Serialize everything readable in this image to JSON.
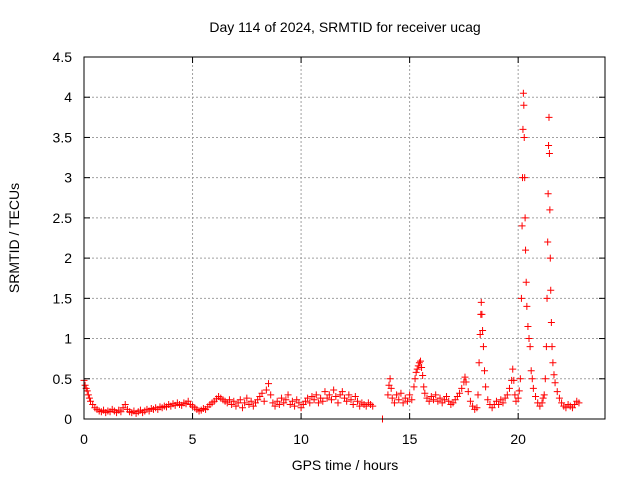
{
  "chart_data": {
    "type": "scatter",
    "title": "Day 114 of 2024, SRMTID for receiver ucag",
    "xlabel": "GPS time / hours",
    "ylabel": "SRMTID / TECUs",
    "xlim": [
      0,
      24
    ],
    "ylim": [
      0,
      4.5
    ],
    "xticks": [
      0,
      5,
      10,
      15,
      20
    ],
    "xtick_labels": [
      "0",
      "5",
      "10",
      "15",
      "20"
    ],
    "yticks": [
      0,
      0.5,
      1,
      1.5,
      2,
      2.5,
      3,
      3.5,
      4,
      4.5
    ],
    "ytick_labels": [
      "0",
      "0.5",
      "1",
      "1.5",
      "2",
      "2.5",
      "3",
      "3.5",
      "4",
      "4.5"
    ],
    "grid": true,
    "marker": "+",
    "color": "#ff0000",
    "series": [
      {
        "name": "ucag",
        "points": [
          [
            0.0,
            0.48
          ],
          [
            0.05,
            0.42
          ],
          [
            0.1,
            0.38
          ],
          [
            0.15,
            0.35
          ],
          [
            0.2,
            0.3
          ],
          [
            0.25,
            0.26
          ],
          [
            0.3,
            0.22
          ],
          [
            0.4,
            0.18
          ],
          [
            0.5,
            0.14
          ],
          [
            0.6,
            0.12
          ],
          [
            0.7,
            0.1
          ],
          [
            0.8,
            0.09
          ],
          [
            0.9,
            0.11
          ],
          [
            1.0,
            0.08
          ],
          [
            1.1,
            0.1
          ],
          [
            1.2,
            0.09
          ],
          [
            1.3,
            0.12
          ],
          [
            1.4,
            0.1
          ],
          [
            1.5,
            0.08
          ],
          [
            1.6,
            0.11
          ],
          [
            1.7,
            0.09
          ],
          [
            1.8,
            0.14
          ],
          [
            1.9,
            0.18
          ],
          [
            2.0,
            0.12
          ],
          [
            2.1,
            0.09
          ],
          [
            2.2,
            0.08
          ],
          [
            2.3,
            0.1
          ],
          [
            2.4,
            0.07
          ],
          [
            2.5,
            0.09
          ],
          [
            2.6,
            0.11
          ],
          [
            2.7,
            0.08
          ],
          [
            2.8,
            0.1
          ],
          [
            2.9,
            0.12
          ],
          [
            3.0,
            0.1
          ],
          [
            3.1,
            0.13
          ],
          [
            3.2,
            0.12
          ],
          [
            3.3,
            0.14
          ],
          [
            3.4,
            0.12
          ],
          [
            3.5,
            0.15
          ],
          [
            3.6,
            0.14
          ],
          [
            3.7,
            0.16
          ],
          [
            3.8,
            0.15
          ],
          [
            3.9,
            0.18
          ],
          [
            4.0,
            0.16
          ],
          [
            4.1,
            0.19
          ],
          [
            4.2,
            0.17
          ],
          [
            4.3,
            0.2
          ],
          [
            4.4,
            0.18
          ],
          [
            4.5,
            0.17
          ],
          [
            4.6,
            0.2
          ],
          [
            4.7,
            0.19
          ],
          [
            4.8,
            0.22
          ],
          [
            4.9,
            0.18
          ],
          [
            5.0,
            0.16
          ],
          [
            5.1,
            0.14
          ],
          [
            5.2,
            0.12
          ],
          [
            5.3,
            0.1
          ],
          [
            5.4,
            0.11
          ],
          [
            5.5,
            0.13
          ],
          [
            5.6,
            0.12
          ],
          [
            5.7,
            0.15
          ],
          [
            5.8,
            0.18
          ],
          [
            5.9,
            0.2
          ],
          [
            6.0,
            0.22
          ],
          [
            6.1,
            0.25
          ],
          [
            6.2,
            0.28
          ],
          [
            6.3,
            0.26
          ],
          [
            6.4,
            0.24
          ],
          [
            6.5,
            0.22
          ],
          [
            6.6,
            0.2
          ],
          [
            6.7,
            0.24
          ],
          [
            6.8,
            0.18
          ],
          [
            6.9,
            0.22
          ],
          [
            7.0,
            0.16
          ],
          [
            7.1,
            0.2
          ],
          [
            7.2,
            0.24
          ],
          [
            7.3,
            0.14
          ],
          [
            7.4,
            0.2
          ],
          [
            7.5,
            0.26
          ],
          [
            7.6,
            0.18
          ],
          [
            7.7,
            0.22
          ],
          [
            7.8,
            0.16
          ],
          [
            7.9,
            0.2
          ],
          [
            8.0,
            0.24
          ],
          [
            8.1,
            0.28
          ],
          [
            8.2,
            0.32
          ],
          [
            8.3,
            0.22
          ],
          [
            8.4,
            0.36
          ],
          [
            8.5,
            0.44
          ],
          [
            8.6,
            0.3
          ],
          [
            8.7,
            0.2
          ],
          [
            8.8,
            0.16
          ],
          [
            8.9,
            0.22
          ],
          [
            9.0,
            0.18
          ],
          [
            9.1,
            0.26
          ],
          [
            9.2,
            0.2
          ],
          [
            9.3,
            0.24
          ],
          [
            9.4,
            0.3
          ],
          [
            9.5,
            0.18
          ],
          [
            9.6,
            0.22
          ],
          [
            9.7,
            0.16
          ],
          [
            9.8,
            0.24
          ],
          [
            9.9,
            0.2
          ],
          [
            10.0,
            0.14
          ],
          [
            10.1,
            0.18
          ],
          [
            10.2,
            0.22
          ],
          [
            10.3,
            0.26
          ],
          [
            10.4,
            0.2
          ],
          [
            10.5,
            0.28
          ],
          [
            10.6,
            0.24
          ],
          [
            10.7,
            0.3
          ],
          [
            10.8,
            0.2
          ],
          [
            10.9,
            0.26
          ],
          [
            11.0,
            0.22
          ],
          [
            11.1,
            0.34
          ],
          [
            11.2,
            0.26
          ],
          [
            11.3,
            0.3
          ],
          [
            11.4,
            0.24
          ],
          [
            11.5,
            0.36
          ],
          [
            11.6,
            0.28
          ],
          [
            11.7,
            0.2
          ],
          [
            11.8,
            0.3
          ],
          [
            11.9,
            0.34
          ],
          [
            12.0,
            0.26
          ],
          [
            12.1,
            0.22
          ],
          [
            12.2,
            0.3
          ],
          [
            12.3,
            0.24
          ],
          [
            12.4,
            0.18
          ],
          [
            12.5,
            0.28
          ],
          [
            12.6,
            0.22
          ],
          [
            12.7,
            0.16
          ],
          [
            12.8,
            0.2
          ],
          [
            12.9,
            0.18
          ],
          [
            13.0,
            0.16
          ],
          [
            13.1,
            0.2
          ],
          [
            13.2,
            0.18
          ],
          [
            13.3,
            0.16
          ],
          [
            13.75,
            0.0
          ],
          [
            14.0,
            0.3
          ],
          [
            14.05,
            0.42
          ],
          [
            14.1,
            0.5
          ],
          [
            14.15,
            0.38
          ],
          [
            14.2,
            0.26
          ],
          [
            14.3,
            0.2
          ],
          [
            14.4,
            0.3
          ],
          [
            14.5,
            0.24
          ],
          [
            14.6,
            0.32
          ],
          [
            14.7,
            0.2
          ],
          [
            14.8,
            0.26
          ],
          [
            14.9,
            0.22
          ],
          [
            15.0,
            0.3
          ],
          [
            15.1,
            0.24
          ],
          [
            15.2,
            0.4
          ],
          [
            15.25,
            0.5
          ],
          [
            15.3,
            0.58
          ],
          [
            15.35,
            0.62
          ],
          [
            15.4,
            0.66
          ],
          [
            15.45,
            0.7
          ],
          [
            15.5,
            0.72
          ],
          [
            15.55,
            0.64
          ],
          [
            15.6,
            0.54
          ],
          [
            15.65,
            0.4
          ],
          [
            15.7,
            0.32
          ],
          [
            15.8,
            0.26
          ],
          [
            15.9,
            0.22
          ],
          [
            16.0,
            0.28
          ],
          [
            16.1,
            0.24
          ],
          [
            16.2,
            0.3
          ],
          [
            16.3,
            0.22
          ],
          [
            16.4,
            0.26
          ],
          [
            16.5,
            0.2
          ],
          [
            16.6,
            0.24
          ],
          [
            16.7,
            0.28
          ],
          [
            16.8,
            0.22
          ],
          [
            16.9,
            0.18
          ],
          [
            17.0,
            0.2
          ],
          [
            17.1,
            0.24
          ],
          [
            17.2,
            0.28
          ],
          [
            17.3,
            0.32
          ],
          [
            17.4,
            0.38
          ],
          [
            17.5,
            0.46
          ],
          [
            17.55,
            0.52
          ],
          [
            17.6,
            0.46
          ],
          [
            17.7,
            0.34
          ],
          [
            17.8,
            0.22
          ],
          [
            17.9,
            0.16
          ],
          [
            18.0,
            0.12
          ],
          [
            18.1,
            0.14
          ],
          [
            18.15,
            0.3
          ],
          [
            18.2,
            0.7
          ],
          [
            18.25,
            1.05
          ],
          [
            18.28,
            1.3
          ],
          [
            18.3,
            1.45
          ],
          [
            18.33,
            1.3
          ],
          [
            18.36,
            1.1
          ],
          [
            18.4,
            0.9
          ],
          [
            18.45,
            0.6
          ],
          [
            18.5,
            0.4
          ],
          [
            18.6,
            0.24
          ],
          [
            18.7,
            0.18
          ],
          [
            18.8,
            0.14
          ],
          [
            18.9,
            0.18
          ],
          [
            19.0,
            0.22
          ],
          [
            19.1,
            0.18
          ],
          [
            19.2,
            0.24
          ],
          [
            19.3,
            0.2
          ],
          [
            19.4,
            0.26
          ],
          [
            19.5,
            0.3
          ],
          [
            19.6,
            0.38
          ],
          [
            19.7,
            0.48
          ],
          [
            19.75,
            0.62
          ],
          [
            19.8,
            0.48
          ],
          [
            19.85,
            0.3
          ],
          [
            19.9,
            0.22
          ],
          [
            20.0,
            0.26
          ],
          [
            20.05,
            0.35
          ],
          [
            20.1,
            0.5
          ],
          [
            20.15,
            1.5
          ],
          [
            20.18,
            2.4
          ],
          [
            20.2,
            3.0
          ],
          [
            20.22,
            3.6
          ],
          [
            20.24,
            4.05
          ],
          [
            20.26,
            3.9
          ],
          [
            20.28,
            3.5
          ],
          [
            20.3,
            3.0
          ],
          [
            20.32,
            2.5
          ],
          [
            20.34,
            2.1
          ],
          [
            20.37,
            1.7
          ],
          [
            20.4,
            1.4
          ],
          [
            20.45,
            1.15
          ],
          [
            20.5,
            1.0
          ],
          [
            20.55,
            0.9
          ],
          [
            20.6,
            0.6
          ],
          [
            20.65,
            0.5
          ],
          [
            20.7,
            0.38
          ],
          [
            20.8,
            0.28
          ],
          [
            20.9,
            0.2
          ],
          [
            21.0,
            0.16
          ],
          [
            21.1,
            0.2
          ],
          [
            21.15,
            0.26
          ],
          [
            21.2,
            0.3
          ],
          [
            21.25,
            0.5
          ],
          [
            21.3,
            0.9
          ],
          [
            21.33,
            1.5
          ],
          [
            21.36,
            2.2
          ],
          [
            21.38,
            2.8
          ],
          [
            21.4,
            3.4
          ],
          [
            21.42,
            3.75
          ],
          [
            21.44,
            3.3
          ],
          [
            21.46,
            2.6
          ],
          [
            21.48,
            2.0
          ],
          [
            21.5,
            1.6
          ],
          [
            21.53,
            1.2
          ],
          [
            21.56,
            0.9
          ],
          [
            21.6,
            0.7
          ],
          [
            21.65,
            0.55
          ],
          [
            21.7,
            0.45
          ],
          [
            21.8,
            0.34
          ],
          [
            21.9,
            0.26
          ],
          [
            22.0,
            0.2
          ],
          [
            22.1,
            0.16
          ],
          [
            22.2,
            0.14
          ],
          [
            22.3,
            0.18
          ],
          [
            22.4,
            0.16
          ],
          [
            22.5,
            0.14
          ],
          [
            22.6,
            0.18
          ],
          [
            22.7,
            0.22
          ],
          [
            22.8,
            0.2
          ]
        ]
      }
    ]
  }
}
